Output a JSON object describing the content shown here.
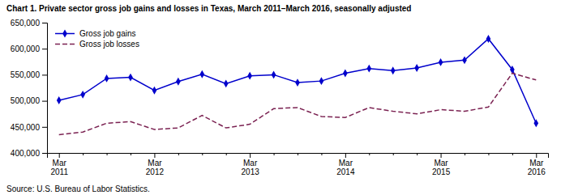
{
  "chart_data": {
    "type": "line",
    "title": "Chart 1. Private sector gross job gains and losses in Texas, March 2011–March 2016, seasonally adjusted",
    "source": "Source: U.S. Bureau of Labor Statistics.",
    "categories": [
      "Mar\n2011",
      null,
      null,
      null,
      "Mar\n2012",
      null,
      null,
      null,
      "Mar\n2013",
      null,
      null,
      null,
      "Mar\n2014",
      null,
      null,
      null,
      "Mar\n2015",
      null,
      null,
      null,
      "Mar\n2016"
    ],
    "series": [
      {
        "name": "Gross job gains",
        "color": "#0000cc",
        "marker": "diamond",
        "line_style": "solid",
        "values": [
          501000,
          512000,
          543000,
          545000,
          520000,
          537000,
          551000,
          533000,
          548000,
          550000,
          535000,
          538000,
          553000,
          562000,
          558000,
          563000,
          574000,
          578000,
          619000,
          560000,
          457000
        ]
      },
      {
        "name": "Gross job losses",
        "color": "#7b2252",
        "marker": "none",
        "line_style": "dashed",
        "values": [
          435000,
          440000,
          457000,
          460000,
          445000,
          448000,
          472000,
          448000,
          455000,
          485000,
          487000,
          470000,
          468000,
          487000,
          480000,
          475000,
          483000,
          480000,
          488000,
          553000,
          540000
        ]
      }
    ],
    "ylim": [
      400000,
      650000
    ],
    "yticks": [
      {
        "value": 400000,
        "label": "400,000"
      },
      {
        "value": 450000,
        "label": "450,000"
      },
      {
        "value": 500000,
        "label": "500,000"
      },
      {
        "value": 550000,
        "label": "550,000"
      },
      {
        "value": 600000,
        "label": "600,000"
      },
      {
        "value": 650000,
        "label": "650,000"
      }
    ],
    "grid": false,
    "legend": "upper left"
  }
}
